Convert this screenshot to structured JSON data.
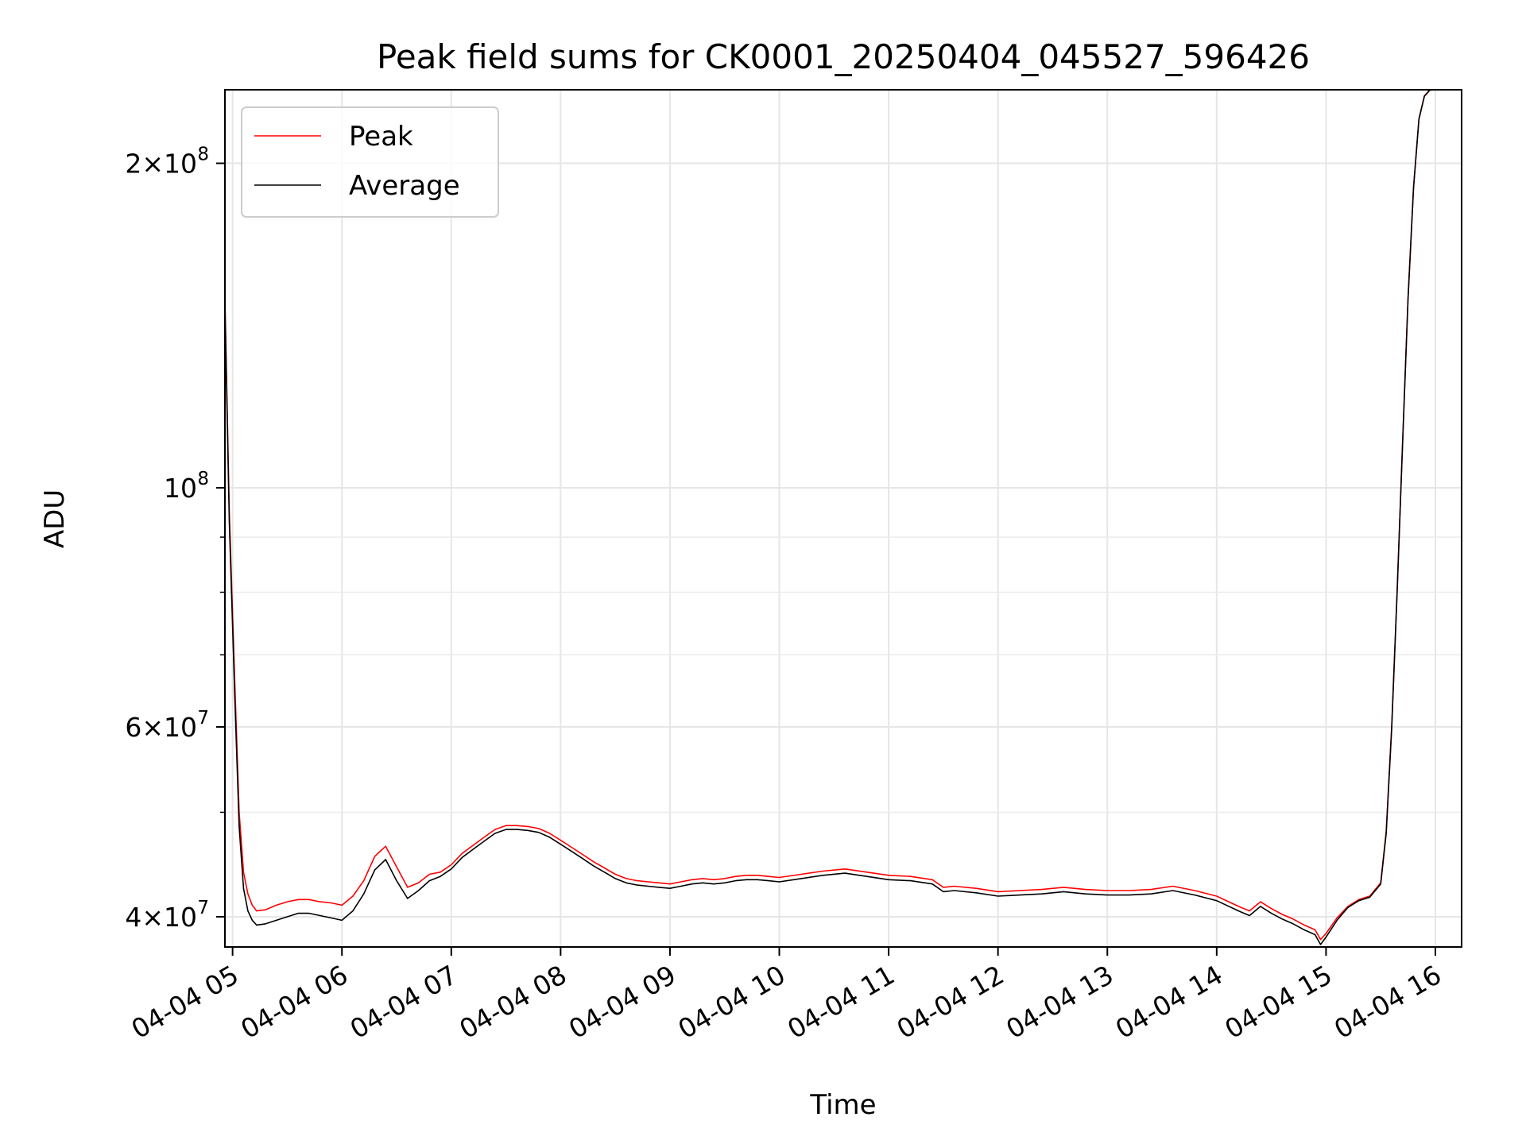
{
  "chart_data": {
    "type": "line",
    "title": "Peak field sums for CK0001_20250404_045527_596426",
    "xlabel": "Time",
    "ylabel": "ADU",
    "x_axis": {
      "kind": "time",
      "unit": "hours of 2025-04-04",
      "range": [
        4.93,
        16.24
      ]
    },
    "y_axis": {
      "scale": "log",
      "range": [
        37500000,
        234000000
      ]
    },
    "grid": true,
    "legend": {
      "placement": "top-left",
      "entries": [
        "Peak",
        "Average"
      ]
    },
    "x_ticks": [
      {
        "value": 5,
        "label": "04-04 05"
      },
      {
        "value": 6,
        "label": "04-04 06"
      },
      {
        "value": 7,
        "label": "04-04 07"
      },
      {
        "value": 8,
        "label": "04-04 08"
      },
      {
        "value": 9,
        "label": "04-04 09"
      },
      {
        "value": 10,
        "label": "04-04 10"
      },
      {
        "value": 11,
        "label": "04-04 11"
      },
      {
        "value": 12,
        "label": "04-04 12"
      },
      {
        "value": 13,
        "label": "04-04 13"
      },
      {
        "value": 14,
        "label": "04-04 14"
      },
      {
        "value": 15,
        "label": "04-04 15"
      },
      {
        "value": 16,
        "label": "04-04 16"
      }
    ],
    "y_ticks": [
      {
        "value": 40000000,
        "mantissa": "4",
        "exponent": "7"
      },
      {
        "value": 60000000,
        "mantissa": "6",
        "exponent": "7"
      },
      {
        "value": 100000000,
        "mantissa": "",
        "exponent": "8"
      },
      {
        "value": 200000000,
        "mantissa": "2",
        "exponent": "8"
      }
    ],
    "y_minor_ticks": [
      50000000,
      70000000,
      80000000,
      90000000
    ],
    "series": [
      {
        "name": "Peak",
        "color": "#ff0000",
        "x": [
          4.93,
          4.97,
          5.02,
          5.06,
          5.1,
          5.14,
          5.18,
          5.22,
          5.3,
          5.4,
          5.5,
          5.6,
          5.7,
          5.8,
          5.9,
          6.0,
          6.1,
          6.2,
          6.3,
          6.4,
          6.5,
          6.6,
          6.7,
          6.8,
          6.9,
          7.0,
          7.1,
          7.2,
          7.3,
          7.4,
          7.5,
          7.6,
          7.7,
          7.8,
          7.9,
          8.0,
          8.1,
          8.2,
          8.3,
          8.4,
          8.5,
          8.6,
          8.7,
          8.8,
          8.9,
          9.0,
          9.1,
          9.2,
          9.3,
          9.4,
          9.5,
          9.6,
          9.7,
          9.8,
          9.9,
          10.0,
          10.2,
          10.4,
          10.6,
          10.8,
          11.0,
          11.2,
          11.4,
          11.5,
          11.6,
          11.8,
          12.0,
          12.2,
          12.4,
          12.6,
          12.8,
          13.0,
          13.2,
          13.4,
          13.6,
          13.8,
          14.0,
          14.2,
          14.3,
          14.4,
          14.5,
          14.6,
          14.7,
          14.8,
          14.9,
          14.95,
          15.0,
          15.1,
          15.2,
          15.3,
          15.4,
          15.5,
          15.55,
          15.6,
          15.65,
          15.7,
          15.75,
          15.8,
          15.85,
          15.9,
          15.95,
          16.0
        ],
        "y": [
          150000000,
          95000000,
          66000000,
          50000000,
          44000000,
          42000000,
          41000000,
          40500000,
          40600000,
          41000000,
          41300000,
          41500000,
          41500000,
          41300000,
          41200000,
          41000000,
          41800000,
          43200000,
          45500000,
          46500000,
          44500000,
          42600000,
          43000000,
          43800000,
          44000000,
          44700000,
          45800000,
          46600000,
          47400000,
          48200000,
          48600000,
          48600000,
          48500000,
          48300000,
          47800000,
          47100000,
          46400000,
          45700000,
          45000000,
          44400000,
          43800000,
          43400000,
          43200000,
          43100000,
          43000000,
          42900000,
          43100000,
          43300000,
          43400000,
          43300000,
          43400000,
          43600000,
          43700000,
          43700000,
          43600000,
          43500000,
          43800000,
          44100000,
          44300000,
          44000000,
          43700000,
          43600000,
          43300000,
          42600000,
          42700000,
          42500000,
          42200000,
          42300000,
          42400000,
          42600000,
          42400000,
          42300000,
          42300000,
          42400000,
          42700000,
          42300000,
          41800000,
          40900000,
          40500000,
          41300000,
          40700000,
          40200000,
          39800000,
          39300000,
          38900000,
          38100000,
          38600000,
          39900000,
          40900000,
          41500000,
          41800000,
          43000000,
          48000000,
          60000000,
          80000000,
          110000000,
          150000000,
          190000000,
          220000000,
          231000000,
          234000000,
          234000000
        ]
      },
      {
        "name": "Average",
        "color": "#000000",
        "x": [
          4.93,
          4.97,
          5.02,
          5.06,
          5.1,
          5.14,
          5.18,
          5.22,
          5.3,
          5.4,
          5.5,
          5.6,
          5.7,
          5.8,
          5.9,
          6.0,
          6.1,
          6.2,
          6.3,
          6.4,
          6.5,
          6.6,
          6.7,
          6.8,
          6.9,
          7.0,
          7.1,
          7.2,
          7.3,
          7.4,
          7.5,
          7.6,
          7.7,
          7.8,
          7.9,
          8.0,
          8.1,
          8.2,
          8.3,
          8.4,
          8.5,
          8.6,
          8.7,
          8.8,
          8.9,
          9.0,
          9.1,
          9.2,
          9.3,
          9.4,
          9.5,
          9.6,
          9.7,
          9.8,
          9.9,
          10.0,
          10.2,
          10.4,
          10.6,
          10.8,
          11.0,
          11.2,
          11.4,
          11.5,
          11.6,
          11.8,
          12.0,
          12.2,
          12.4,
          12.6,
          12.8,
          13.0,
          13.2,
          13.4,
          13.6,
          13.8,
          14.0,
          14.2,
          14.3,
          14.4,
          14.5,
          14.6,
          14.7,
          14.8,
          14.9,
          14.95,
          15.0,
          15.1,
          15.2,
          15.3,
          15.4,
          15.5,
          15.55,
          15.6,
          15.65,
          15.7,
          15.75,
          15.8,
          15.85,
          15.9,
          15.95,
          16.0
        ],
        "y": [
          148000000,
          93000000,
          64000000,
          48500000,
          42500000,
          40500000,
          39700000,
          39300000,
          39400000,
          39700000,
          40000000,
          40300000,
          40300000,
          40100000,
          39900000,
          39700000,
          40500000,
          42000000,
          44200000,
          45200000,
          43200000,
          41600000,
          42300000,
          43200000,
          43600000,
          44300000,
          45400000,
          46200000,
          47000000,
          47800000,
          48200000,
          48200000,
          48100000,
          47900000,
          47400000,
          46700000,
          46000000,
          45300000,
          44600000,
          44000000,
          43400000,
          43000000,
          42800000,
          42700000,
          42600000,
          42500000,
          42700000,
          42900000,
          43000000,
          42900000,
          43000000,
          43200000,
          43300000,
          43300000,
          43200000,
          43100000,
          43400000,
          43700000,
          43900000,
          43600000,
          43300000,
          43200000,
          42900000,
          42200000,
          42300000,
          42100000,
          41800000,
          41900000,
          42000000,
          42200000,
          42000000,
          41900000,
          41900000,
          42000000,
          42300000,
          41900000,
          41400000,
          40500000,
          40100000,
          40900000,
          40300000,
          39800000,
          39400000,
          38900000,
          38500000,
          37700000,
          38300000,
          39700000,
          40800000,
          41400000,
          41700000,
          42900000,
          47800000,
          59800000,
          79800000,
          109800000,
          149800000,
          189800000,
          219800000,
          230800000,
          233800000,
          234000000
        ]
      }
    ]
  }
}
